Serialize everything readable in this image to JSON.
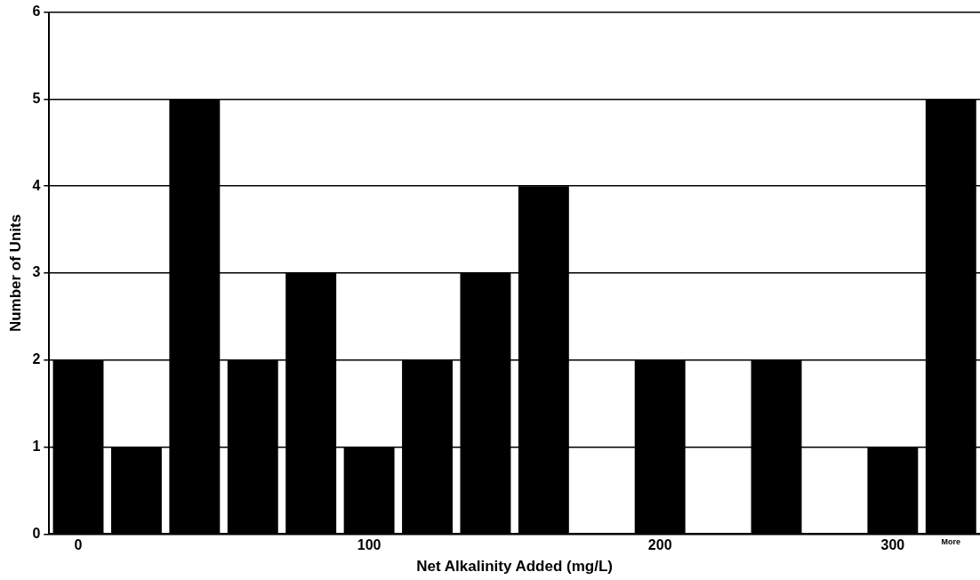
{
  "chart_data": {
    "type": "bar",
    "xlabel": "Net Alkalinity Added (mg/L)",
    "ylabel": "Number of Units",
    "categories": [
      "0",
      null,
      null,
      null,
      null,
      "100",
      null,
      null,
      null,
      null,
      "200",
      null,
      null,
      null,
      "300",
      "More"
    ],
    "values": [
      2,
      1,
      5,
      2,
      3,
      1,
      2,
      3,
      4,
      0,
      2,
      0,
      2,
      0,
      1,
      5
    ],
    "color": "#000000",
    "ylim": [
      0,
      6
    ],
    "yticks": [
      0,
      1,
      2,
      3,
      4,
      5,
      6
    ],
    "grid": "y",
    "legend": false
  }
}
